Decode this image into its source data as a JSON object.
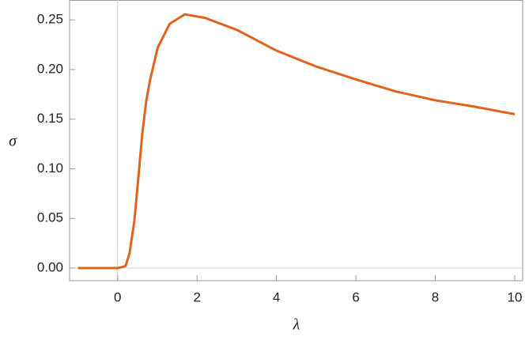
{
  "chart_data": {
    "type": "line",
    "x_label": "λ",
    "y_label": "σ",
    "x": [
      -1,
      0,
      0.2,
      0.3,
      0.42,
      0.52,
      0.62,
      0.72,
      0.82,
      1.01,
      1.31,
      1.69,
      2.2,
      3,
      4,
      5,
      6,
      7,
      8,
      9,
      10
    ],
    "series": [
      {
        "color": "#e0621c",
        "values": [
          0,
          0,
          0.002,
          0.015,
          0.047,
          0.09,
          0.135,
          0.168,
          0.19,
          0.222,
          0.246,
          0.2556,
          0.252,
          0.24,
          0.219,
          0.203,
          0.19,
          0.178,
          0.169,
          0.1625,
          0.155
        ]
      }
    ],
    "xlim": [
      -1.21,
      10.2
    ],
    "ylim": [
      -0.0127,
      0.27
    ],
    "xticks": [
      0,
      2,
      4,
      6,
      8,
      10
    ],
    "yticks": [
      {
        "value": 0,
        "label": "0.00"
      },
      {
        "value": 0.05,
        "label": "0.05"
      },
      {
        "value": 0.1,
        "label": "0.10"
      },
      {
        "value": 0.15,
        "label": "0.15"
      },
      {
        "value": 0.2,
        "label": "0.20"
      },
      {
        "value": 0.25,
        "label": "0.25"
      }
    ]
  }
}
